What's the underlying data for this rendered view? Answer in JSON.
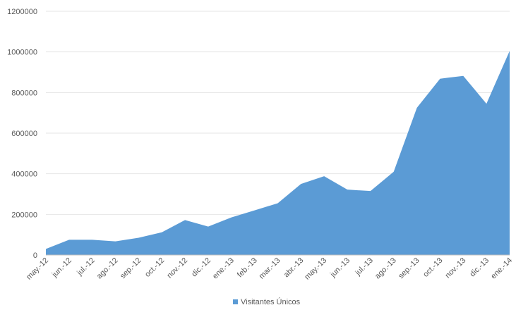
{
  "chart_data": {
    "type": "area",
    "categories": [
      "may.-12",
      "jun.-12",
      "jul.-12",
      "ago.-12",
      "sep.-12",
      "oct.-12",
      "nov.-12",
      "dic.-12",
      "ene.-13",
      "feb.-13",
      "mar.-13",
      "abr.-13",
      "may.-13",
      "jun.-13",
      "jul.-13",
      "ago.-13",
      "sep.-13",
      "oct.-13",
      "nov.-13",
      "dic.-13",
      "ene.-14"
    ],
    "series": [
      {
        "name": "Visitantes Únicos",
        "values": [
          30000,
          75000,
          75000,
          67000,
          85000,
          112000,
          172000,
          140000,
          185000,
          220000,
          255000,
          350000,
          388000,
          322000,
          315000,
          410000,
          725000,
          868000,
          882000,
          745000,
          1005000
        ],
        "color": "#5b9bd5"
      }
    ],
    "yticks": [
      "0",
      "200000",
      "400000",
      "600000",
      "800000",
      "1000000",
      "1200000"
    ],
    "ylim": [
      0,
      1200000
    ],
    "grid": true,
    "legend": "bottom",
    "title": "",
    "xlabel": "",
    "ylabel": ""
  },
  "colors": {
    "grid": "#e6e6e6",
    "axis": "#bfbfbf",
    "text": "#595959"
  }
}
